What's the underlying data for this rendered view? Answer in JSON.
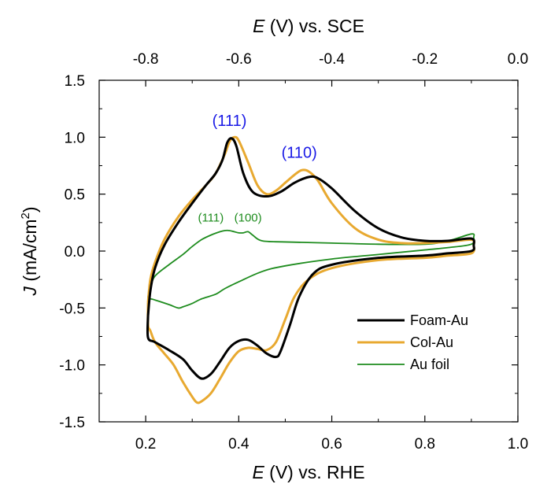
{
  "chart_data": {
    "type": "line",
    "xlabel": {
      "var": "E",
      "rest": " (V) vs. RHE"
    },
    "x2label": {
      "var": "E",
      "rest": " (V) vs. SCE"
    },
    "ylabel": {
      "var": "J",
      "pre": " (mA/cm",
      "sup": "2",
      "post": ")"
    },
    "xlim": [
      0.1,
      1.0
    ],
    "ylim": [
      -1.5,
      1.5
    ],
    "x2lim": [
      -0.9,
      0.0
    ],
    "xticks": [
      0.2,
      0.4,
      0.6,
      0.8,
      1.0
    ],
    "xtick_labels": [
      "0.2",
      "0.4",
      "0.6",
      "0.8",
      "1.0"
    ],
    "x2ticks": [
      -0.8,
      -0.6,
      -0.4,
      -0.2,
      0.0
    ],
    "x2tick_labels": [
      "-0.8",
      "-0.6",
      "-0.4",
      "-0.2",
      "0.0"
    ],
    "yticks": [
      -1.5,
      -1.0,
      -0.5,
      0.0,
      0.5,
      1.0,
      1.5
    ],
    "ytick_labels": [
      "-1.5",
      "-1.0",
      "-0.5",
      "0.0",
      "0.5",
      "1.0",
      "1.5"
    ],
    "grid": false,
    "legend_position": "bottom-right",
    "series": [
      {
        "name": "Foam-Au",
        "color": "#000000",
        "x": [
          0.205,
          0.21,
          0.22,
          0.24,
          0.27,
          0.3,
          0.33,
          0.35,
          0.365,
          0.375,
          0.385,
          0.395,
          0.41,
          0.43,
          0.46,
          0.49,
          0.52,
          0.55,
          0.57,
          0.6,
          0.65,
          0.7,
          0.75,
          0.8,
          0.85,
          0.9,
          0.905,
          0.9,
          0.85,
          0.8,
          0.7,
          0.6,
          0.56,
          0.53,
          0.51,
          0.49,
          0.48,
          0.46,
          0.44,
          0.42,
          0.4,
          0.38,
          0.36,
          0.34,
          0.32,
          0.3,
          0.28,
          0.25,
          0.22,
          0.205,
          0.205
        ],
        "y": [
          -0.57,
          -0.35,
          -0.15,
          0.05,
          0.25,
          0.42,
          0.58,
          0.68,
          0.8,
          0.95,
          0.99,
          0.92,
          0.68,
          0.52,
          0.48,
          0.52,
          0.6,
          0.65,
          0.64,
          0.55,
          0.35,
          0.2,
          0.12,
          0.09,
          0.09,
          0.11,
          0.05,
          0.0,
          -0.02,
          -0.04,
          -0.06,
          -0.12,
          -0.2,
          -0.4,
          -0.65,
          -0.88,
          -0.93,
          -0.9,
          -0.83,
          -0.78,
          -0.79,
          -0.85,
          -0.97,
          -1.08,
          -1.12,
          -1.05,
          -0.95,
          -0.87,
          -0.8,
          -0.76,
          -0.57
        ]
      },
      {
        "name": "Col-Au",
        "color": "#E8A930",
        "x": [
          0.205,
          0.21,
          0.22,
          0.24,
          0.27,
          0.3,
          0.33,
          0.35,
          0.37,
          0.38,
          0.39,
          0.4,
          0.42,
          0.44,
          0.46,
          0.48,
          0.5,
          0.52,
          0.535,
          0.55,
          0.57,
          0.6,
          0.65,
          0.7,
          0.75,
          0.8,
          0.85,
          0.9,
          0.905,
          0.9,
          0.85,
          0.8,
          0.7,
          0.6,
          0.55,
          0.52,
          0.5,
          0.48,
          0.46,
          0.44,
          0.42,
          0.4,
          0.38,
          0.36,
          0.34,
          0.32,
          0.31,
          0.3,
          0.28,
          0.26,
          0.24,
          0.22,
          0.21,
          0.205,
          0.205
        ],
        "y": [
          -0.45,
          -0.25,
          -0.1,
          0.1,
          0.3,
          0.45,
          0.58,
          0.68,
          0.85,
          0.96,
          1.0,
          0.97,
          0.78,
          0.58,
          0.5,
          0.53,
          0.6,
          0.67,
          0.71,
          0.7,
          0.62,
          0.42,
          0.2,
          0.1,
          0.07,
          0.07,
          0.08,
          0.1,
          0.05,
          -0.02,
          -0.04,
          -0.06,
          -0.08,
          -0.15,
          -0.25,
          -0.4,
          -0.6,
          -0.8,
          -0.87,
          -0.86,
          -0.85,
          -0.88,
          -0.98,
          -1.12,
          -1.25,
          -1.32,
          -1.33,
          -1.28,
          -1.15,
          -1.0,
          -0.9,
          -0.8,
          -0.7,
          -0.65,
          -0.45
        ]
      },
      {
        "name": "Au foil",
        "color": "#1E8C1E",
        "x": [
          0.205,
          0.21,
          0.22,
          0.25,
          0.28,
          0.3,
          0.32,
          0.34,
          0.36,
          0.37,
          0.38,
          0.39,
          0.4,
          0.41,
          0.42,
          0.43,
          0.45,
          0.5,
          0.6,
          0.7,
          0.8,
          0.85,
          0.9,
          0.905,
          0.9,
          0.85,
          0.8,
          0.7,
          0.6,
          0.5,
          0.45,
          0.4,
          0.37,
          0.35,
          0.32,
          0.3,
          0.28,
          0.27,
          0.25,
          0.22,
          0.21,
          0.205,
          0.205
        ],
        "y": [
          -0.4,
          -0.32,
          -0.22,
          -0.12,
          -0.03,
          0.04,
          0.1,
          0.14,
          0.17,
          0.18,
          0.18,
          0.17,
          0.16,
          0.16,
          0.17,
          0.14,
          0.09,
          0.08,
          0.07,
          0.06,
          0.06,
          0.09,
          0.15,
          0.12,
          0.06,
          0.03,
          0.01,
          -0.03,
          -0.07,
          -0.13,
          -0.18,
          -0.27,
          -0.33,
          -0.38,
          -0.42,
          -0.46,
          -0.49,
          -0.5,
          -0.47,
          -0.43,
          -0.42,
          -0.43,
          -0.4
        ]
      }
    ],
    "annotations": [
      {
        "text": "(111)",
        "x": 0.38,
        "y": 1.1,
        "color": "#1A1AE6",
        "size": "large"
      },
      {
        "text": "(110)",
        "x": 0.53,
        "y": 0.82,
        "color": "#1A1AE6",
        "size": "large"
      },
      {
        "text": "(111)",
        "x": 0.34,
        "y": 0.26,
        "color": "#1E8C1E",
        "size": "small"
      },
      {
        "text": "(100)",
        "x": 0.42,
        "y": 0.26,
        "color": "#1E8C1E",
        "size": "small"
      }
    ]
  }
}
